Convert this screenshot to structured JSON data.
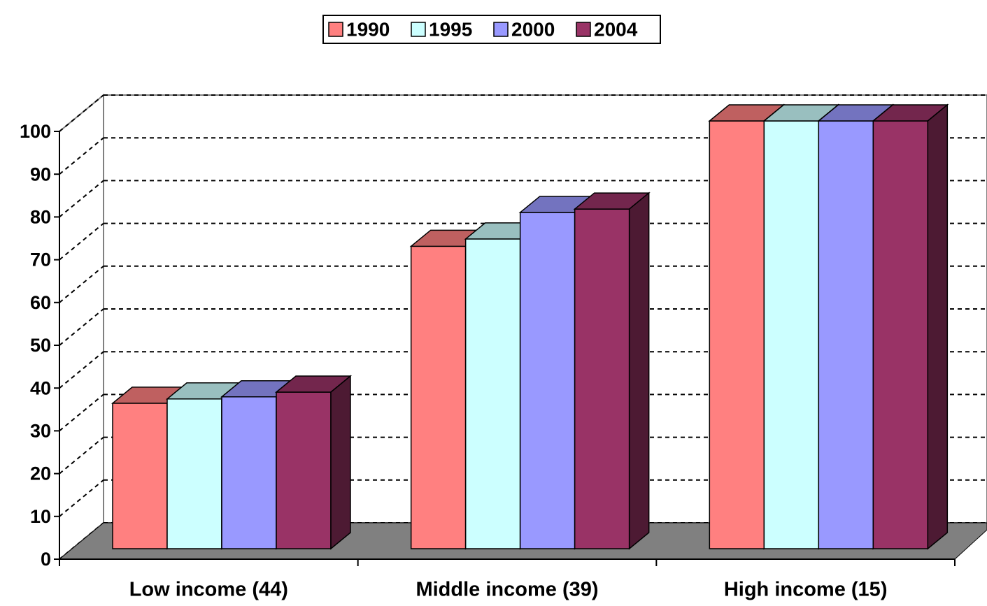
{
  "chart_data": {
    "type": "bar",
    "categories": [
      "Low income (44)",
      "Middle income (39)",
      "High income (15)"
    ],
    "series": [
      {
        "name": "1990",
        "color": "#ff8080",
        "values": [
          34,
          70.7,
          100
        ]
      },
      {
        "name": "1995",
        "color": "#ccffff",
        "values": [
          35,
          72.4,
          100
        ]
      },
      {
        "name": "2000",
        "color": "#9999ff",
        "values": [
          35.5,
          78.6,
          100
        ]
      },
      {
        "name": "2004",
        "color": "#993366",
        "values": [
          36.6,
          79.4,
          100
        ]
      }
    ],
    "ylim": [
      0,
      100
    ],
    "yticks": [
      0,
      10,
      20,
      30,
      40,
      50,
      60,
      70,
      80,
      90,
      100
    ],
    "grid": true,
    "legend": "top"
  }
}
